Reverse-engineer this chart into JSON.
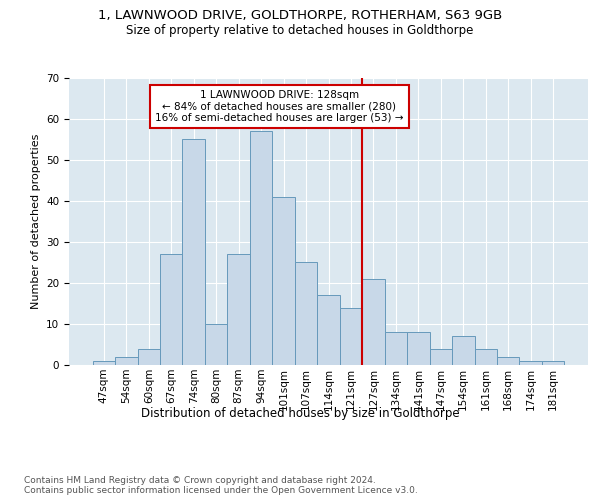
{
  "title1": "1, LAWNWOOD DRIVE, GOLDTHORPE, ROTHERHAM, S63 9GB",
  "title2": "Size of property relative to detached houses in Goldthorpe",
  "xlabel": "Distribution of detached houses by size in Goldthorpe",
  "ylabel": "Number of detached properties",
  "footer": "Contains HM Land Registry data © Crown copyright and database right 2024.\nContains public sector information licensed under the Open Government Licence v3.0.",
  "bin_labels": [
    "47sqm",
    "54sqm",
    "60sqm",
    "67sqm",
    "74sqm",
    "80sqm",
    "87sqm",
    "94sqm",
    "101sqm",
    "107sqm",
    "114sqm",
    "121sqm",
    "127sqm",
    "134sqm",
    "141sqm",
    "147sqm",
    "154sqm",
    "161sqm",
    "168sqm",
    "174sqm",
    "181sqm"
  ],
  "bar_values": [
    1,
    2,
    4,
    27,
    55,
    10,
    27,
    57,
    41,
    25,
    17,
    14,
    21,
    8,
    8,
    4,
    7,
    4,
    2,
    1,
    1
  ],
  "bar_color": "#c8d8e8",
  "bar_edge_color": "#6699bb",
  "vline_color": "#cc0000",
  "annotation_title": "1 LAWNWOOD DRIVE: 128sqm",
  "annotation_line1": "← 84% of detached houses are smaller (280)",
  "annotation_line2": "16% of semi-detached houses are larger (53) →",
  "annotation_box_color": "#cc0000",
  "ylim": [
    0,
    70
  ],
  "yticks": [
    0,
    10,
    20,
    30,
    40,
    50,
    60,
    70
  ],
  "plot_bg_color": "#dce8f0",
  "title1_fontsize": 9.5,
  "title2_fontsize": 8.5,
  "ylabel_fontsize": 8,
  "xlabel_fontsize": 8.5,
  "tick_fontsize": 7.5,
  "footer_fontsize": 6.5
}
